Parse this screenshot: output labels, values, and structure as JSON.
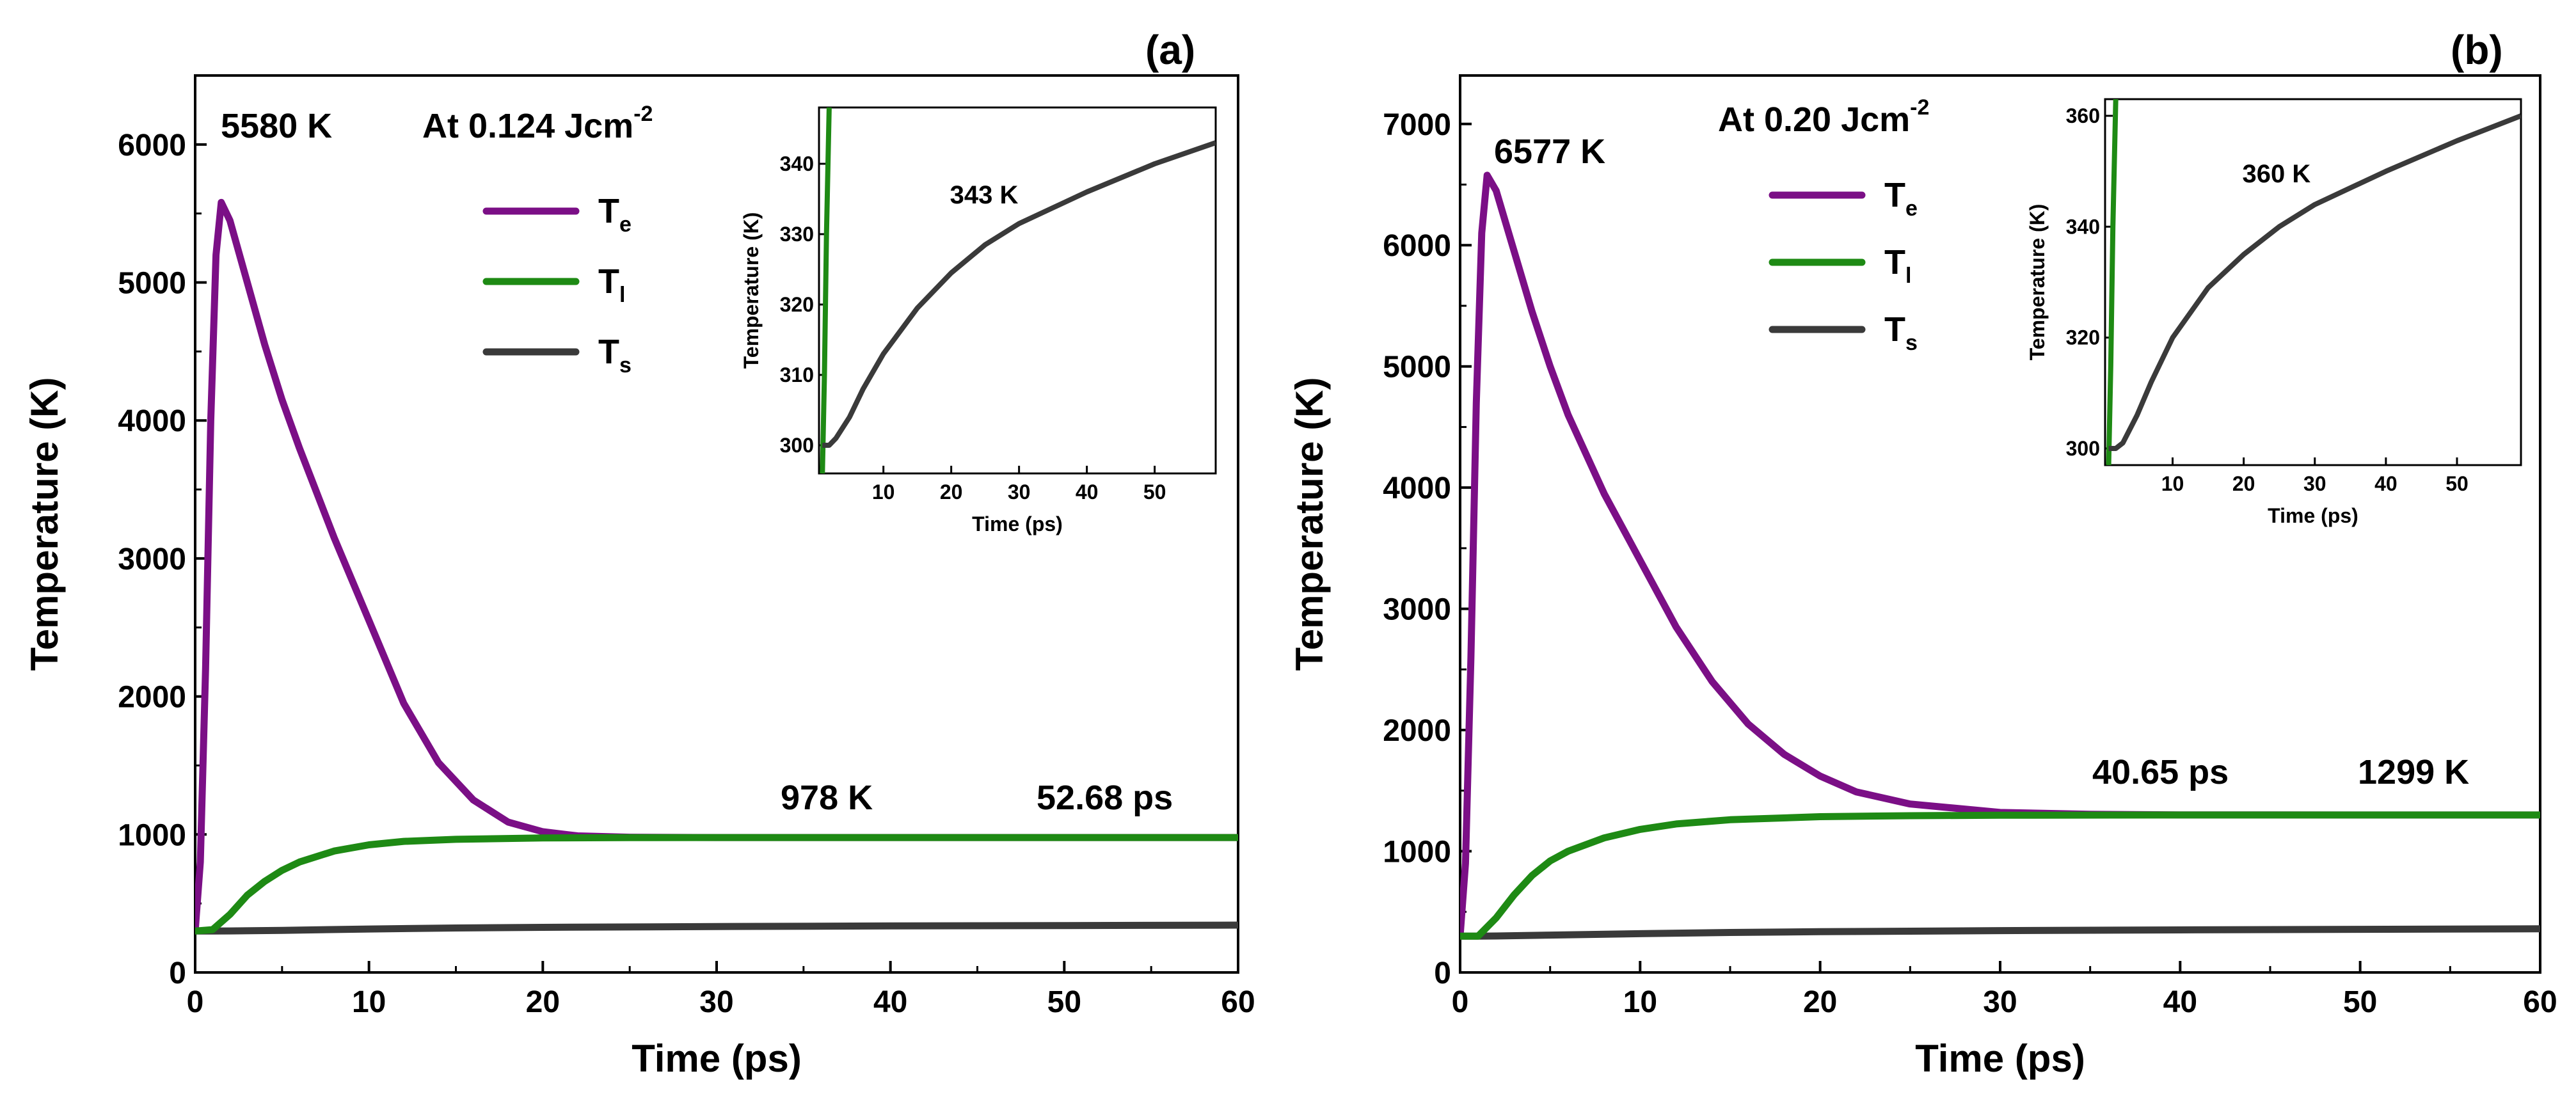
{
  "chart_data": [
    {
      "type": "line",
      "panel_label": "(a)",
      "title": "At 0.124 Jcm",
      "title_sup": "-2",
      "xlabel": "Time (ps)",
      "ylabel": "Temperature (K)",
      "xlim": [
        0,
        60
      ],
      "ylim": [
        0,
        6500
      ],
      "xticks": [
        0,
        10,
        20,
        30,
        40,
        50,
        60
      ],
      "yticks": [
        0,
        1000,
        2000,
        3000,
        4000,
        5000,
        6000
      ],
      "series": [
        {
          "name": "T",
          "sub": "e",
          "color": "#7B0F86",
          "x": [
            0,
            0.3,
            0.6,
            0.9,
            1.2,
            1.5,
            2,
            3,
            4,
            5,
            6,
            8,
            10,
            12,
            14,
            16,
            18,
            20,
            22,
            25,
            30,
            35,
            40,
            50,
            60
          ],
          "y": [
            300,
            800,
            2200,
            4000,
            5200,
            5580,
            5450,
            5000,
            4550,
            4150,
            3800,
            3150,
            2550,
            1950,
            1520,
            1250,
            1090,
            1020,
            990,
            980,
            978,
            978,
            978,
            978,
            978
          ]
        },
        {
          "name": "T",
          "sub": "l",
          "color": "#1E8A14",
          "x": [
            0,
            1,
            2,
            3,
            4,
            5,
            6,
            8,
            10,
            12,
            15,
            20,
            25,
            30,
            40,
            50,
            60
          ],
          "y": [
            300,
            310,
            420,
            560,
            660,
            740,
            800,
            880,
            925,
            950,
            965,
            975,
            977,
            978,
            978,
            978,
            978
          ]
        },
        {
          "name": "T",
          "sub": "s",
          "color": "#3A3A3A",
          "x": [
            0,
            1,
            2,
            5,
            10,
            15,
            20,
            30,
            40,
            50,
            60
          ],
          "y": [
            300,
            300,
            301,
            305,
            315,
            322,
            327,
            333,
            337,
            340,
            343
          ]
        }
      ],
      "annotations": [
        {
          "text": "5580 K",
          "x": 1.5,
          "y": 5580
        },
        {
          "text": "978 K",
          "x": 35.5,
          "y": 1300
        },
        {
          "text": "52.68 ps",
          "x": 52.7,
          "y": 1300
        }
      ],
      "inset": {
        "xlabel": "Time (ps)",
        "ylabel": "Temperature (K)",
        "xlim": [
          0.5,
          59
        ],
        "ylim": [
          296,
          348
        ],
        "xticks": [
          10,
          20,
          30,
          40,
          50
        ],
        "yticks": [
          300,
          310,
          320,
          330,
          340
        ],
        "annotation": "343 K",
        "series": [
          {
            "name": "T_l",
            "color": "#1E8A14",
            "x": [
              1.0,
              1.3,
              1.6,
              2.0
            ],
            "y": [
              296,
              310,
              330,
              348
            ]
          },
          {
            "name": "T_s",
            "color": "#3A3A3A",
            "x": [
              1,
              2,
              3,
              5,
              7,
              10,
              15,
              20,
              25,
              30,
              40,
              50,
              59
            ],
            "y": [
              300,
              300,
              301,
              304,
              308,
              313,
              319.5,
              324.5,
              328.5,
              331.5,
              336,
              340,
              343
            ]
          }
        ]
      }
    },
    {
      "type": "line",
      "panel_label": "(b)",
      "title": "At 0.20 Jcm",
      "title_sup": "-2",
      "xlabel": "Time (ps)",
      "ylabel": "Temperature (K)",
      "xlim": [
        0,
        60
      ],
      "ylim": [
        0,
        7400
      ],
      "xticks": [
        0,
        10,
        20,
        30,
        40,
        50,
        60
      ],
      "yticks": [
        0,
        1000,
        2000,
        3000,
        4000,
        5000,
        6000,
        7000
      ],
      "series": [
        {
          "name": "T",
          "sub": "e",
          "color": "#7B0F86",
          "x": [
            0,
            0.3,
            0.6,
            0.9,
            1.2,
            1.5,
            2,
            3,
            4,
            5,
            6,
            8,
            10,
            12,
            14,
            16,
            18,
            20,
            22,
            25,
            30,
            35,
            40,
            50,
            60
          ],
          "y": [
            300,
            900,
            2600,
            4700,
            6100,
            6577,
            6450,
            5950,
            5450,
            5000,
            4600,
            3950,
            3400,
            2850,
            2400,
            2050,
            1800,
            1620,
            1490,
            1390,
            1320,
            1305,
            1300,
            1299,
            1299
          ]
        },
        {
          "name": "T",
          "sub": "l",
          "color": "#1E8A14",
          "x": [
            0,
            1,
            2,
            3,
            4,
            5,
            6,
            8,
            10,
            12,
            15,
            20,
            25,
            30,
            40,
            50,
            60
          ],
          "y": [
            300,
            300,
            450,
            640,
            800,
            920,
            1000,
            1110,
            1180,
            1225,
            1260,
            1285,
            1293,
            1297,
            1299,
            1299,
            1299
          ]
        },
        {
          "name": "T",
          "sub": "s",
          "color": "#3A3A3A",
          "x": [
            0,
            1,
            2,
            5,
            10,
            15,
            20,
            30,
            40,
            50,
            60
          ],
          "y": [
            300,
            300,
            301,
            308,
            320,
            330,
            336,
            345,
            351,
            356,
            360
          ]
        }
      ],
      "annotations": [
        {
          "text": "6577 K",
          "x": 1.8,
          "y": 6577
        },
        {
          "text": "40.65 ps",
          "x": 35.5,
          "y": 1620
        },
        {
          "text": "1299 K",
          "x": 54,
          "y": 1620
        }
      ],
      "inset": {
        "xlabel": "Time (ps)",
        "ylabel": "Temperature (K)",
        "xlim": [
          0.5,
          59
        ],
        "ylim": [
          297,
          363
        ],
        "xticks": [
          10,
          20,
          30,
          40,
          50
        ],
        "yticks": [
          300,
          320,
          340,
          360
        ],
        "annotation": "360 K",
        "series": [
          {
            "name": "T_l",
            "color": "#1E8A14",
            "x": [
              1.0,
              1.3,
              1.6,
              2.0
            ],
            "y": [
              297,
              315,
              340,
              363
            ]
          },
          {
            "name": "T_s",
            "color": "#3A3A3A",
            "x": [
              1,
              2,
              3,
              5,
              7,
              10,
              15,
              20,
              25,
              30,
              40,
              50,
              59
            ],
            "y": [
              300,
              300,
              301,
              306,
              312,
              320,
              329,
              335,
              340,
              344,
              350,
              355.5,
              360
            ]
          }
        ]
      }
    }
  ]
}
